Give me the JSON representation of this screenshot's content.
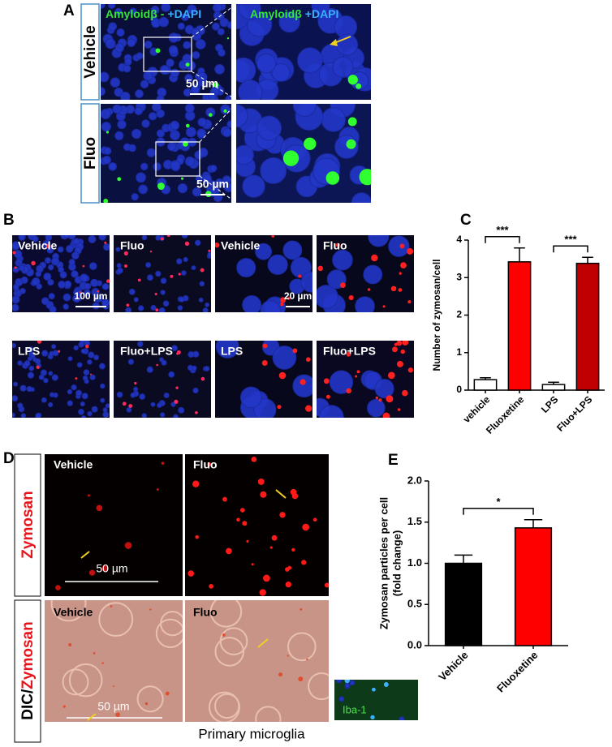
{
  "panels": {
    "a": {
      "letter": "A",
      "channel_green": "Amyloidβ",
      "channel_blue": "+DAPI",
      "rows": [
        "Vehicle",
        "Fluo"
      ],
      "scale": "50 µm"
    },
    "b": {
      "letter": "B",
      "labels": [
        "Vehicle",
        "Fluo",
        "Vehicle",
        "Fluo",
        "LPS",
        "Fluo+LPS",
        "LPS",
        "Fluo+LPS"
      ],
      "scales": [
        "100 µm",
        "20 µm"
      ]
    },
    "d": {
      "letter": "D",
      "row_top": "Zymosan",
      "row_bottom_black": "DIC/",
      "row_bottom_red": "Zymosan",
      "labels": [
        "Vehicle",
        "Fluo",
        "Vehicle",
        "Fluo"
      ],
      "scale": "50 µm",
      "inset": "Iba-1",
      "caption": "Primary microglia"
    }
  },
  "chart_data": [
    {
      "type": "bar",
      "panel": "C",
      "ylabel": [
        "Number of zymosan/cell"
      ],
      "categories": [
        "vehicle",
        "Fluoxetine",
        "LPS",
        "Fluo+LPS"
      ],
      "values": [
        0.28,
        3.42,
        0.15,
        3.38
      ],
      "errors": [
        0.05,
        0.37,
        0.06,
        0.16
      ],
      "colors": [
        "#ffffff",
        "#ff0000",
        "#ffffff",
        "#c00000"
      ],
      "ylim": [
        0,
        4
      ],
      "yticks": [
        0,
        1,
        2,
        3,
        4
      ],
      "significance": [
        {
          "label": "***",
          "groups": [
            0,
            1
          ]
        },
        {
          "label": "***",
          "groups": [
            2,
            3
          ]
        }
      ]
    },
    {
      "type": "bar",
      "panel": "E",
      "ylabel": [
        "Zymosan particles per cell",
        "(fold change)"
      ],
      "categories": [
        "Vehicle",
        "Fluoxetine"
      ],
      "values": [
        1.0,
        1.43
      ],
      "errors": [
        0.1,
        0.1
      ],
      "colors": [
        "#000000",
        "#ff0000"
      ],
      "ylim": [
        0,
        2
      ],
      "yticks": [
        {
          "value": 0,
          "label": "0.0"
        },
        {
          "value": 0.5,
          "label": "0.5"
        },
        {
          "value": 1,
          "label": "1.0"
        },
        {
          "value": 1.5,
          "label": "1.5"
        },
        {
          "value": 2,
          "label": "2.0"
        }
      ],
      "significance": [
        {
          "label": "*",
          "groups": [
            0,
            1
          ]
        }
      ]
    }
  ]
}
